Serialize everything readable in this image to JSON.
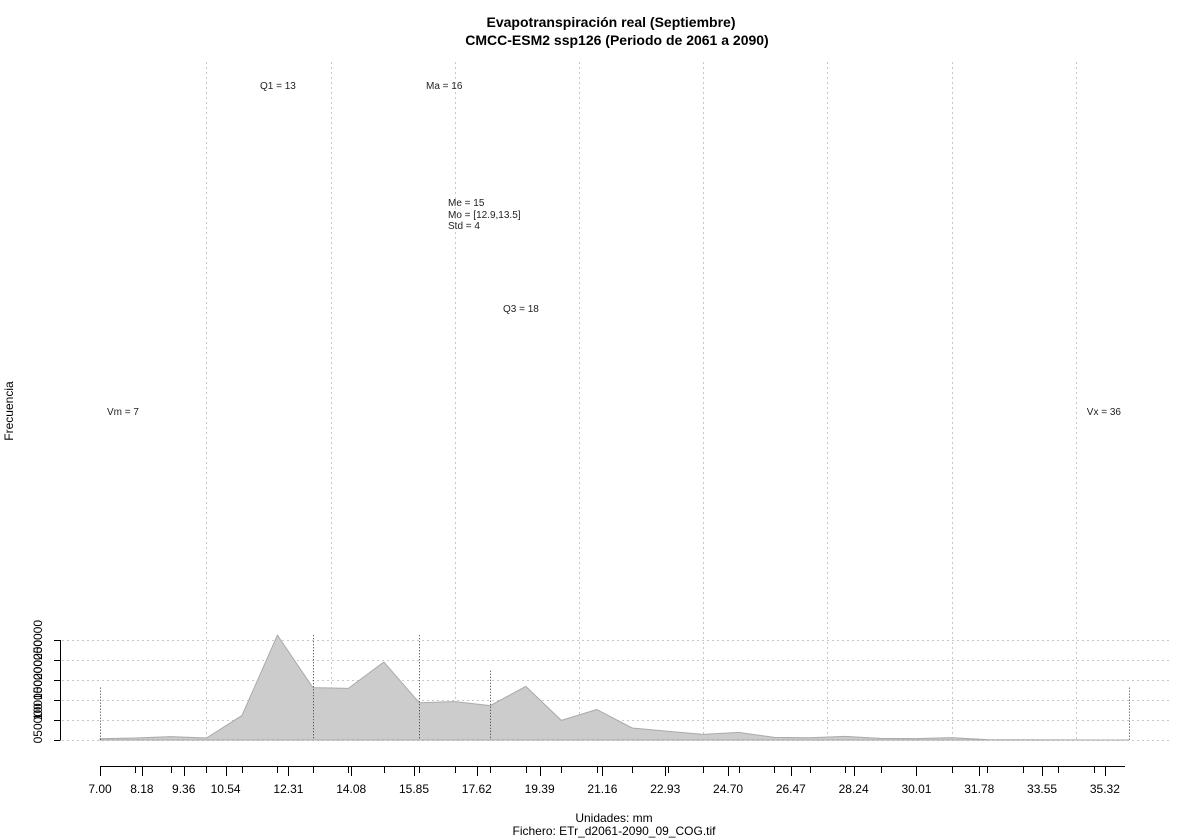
{
  "chart_data": {
    "type": "area",
    "title": "Evapotranspiración real (Septiembre)",
    "subtitle": "CMCC-ESM2 ssp126 (Periodo de 2061 a 2090)",
    "xlabel": "Unidades: mm",
    "ylabel": "Frecuencia",
    "footer": "Fichero: ETr_d2061-2090_09_COG.tif",
    "xlim": [
      7.0,
      36.0
    ],
    "ylim": [
      0,
      260000
    ],
    "x_tick_labels": [
      "7.00",
      "8.18",
      "9.36",
      "10.54",
      "12.31",
      "14.08",
      "15.85",
      "17.62",
      "19.39",
      "21.16",
      "22.93",
      "24.70",
      "26.47",
      "28.24",
      "30.01",
      "31.78",
      "33.55",
      "35.32"
    ],
    "y_ticks": [
      0,
      50000,
      100000,
      150000,
      200000,
      250000
    ],
    "grid": true,
    "series": [
      {
        "x": [
          7.0,
          8.0,
          9.0,
          10.0,
          11.0,
          12.0,
          13.0,
          14.0,
          15.0,
          16.0,
          17.0,
          18.0,
          19.0,
          20.0,
          21.0,
          22.0,
          23.0,
          24.0,
          25.0,
          26.0,
          27.0,
          28.0,
          29.0,
          30.0,
          31.0,
          32.0,
          33.0,
          34.0,
          35.0,
          36.0
        ],
        "values": [
          3000,
          5000,
          8500,
          5000,
          61000,
          262000,
          131000,
          129000,
          195000,
          93000,
          96000,
          86000,
          134000,
          49000,
          76000,
          30000,
          22000,
          14000,
          19000,
          6500,
          5500,
          9000,
          4000,
          3500,
          6000,
          1000,
          500,
          200,
          100,
          100
        ]
      }
    ],
    "annotations": {
      "q1": "Q1 = 13",
      "ma": "Ma = 16",
      "me": "Me = 15",
      "mo": "Mo = [12.9,13.5]",
      "std": "Std = 4",
      "q3": "Q3 = 18",
      "vm": "Vm = 7",
      "vx": "Vx = 36"
    },
    "vlines": [
      {
        "label": "Vm",
        "x": 7.0,
        "y": 131000
      },
      {
        "label": "Q1",
        "x": 13.0,
        "y": 262000
      },
      {
        "label": "Ma",
        "x": 16.0,
        "y": 262000
      },
      {
        "label": "Q3",
        "x": 18.0,
        "y": 173000
      },
      {
        "label": "Vx",
        "x": 36.0,
        "y": 131000
      }
    ],
    "colors": {
      "fill": "#cccccc",
      "line": "#aaaaaa",
      "grid": "#c8c8c8"
    }
  }
}
